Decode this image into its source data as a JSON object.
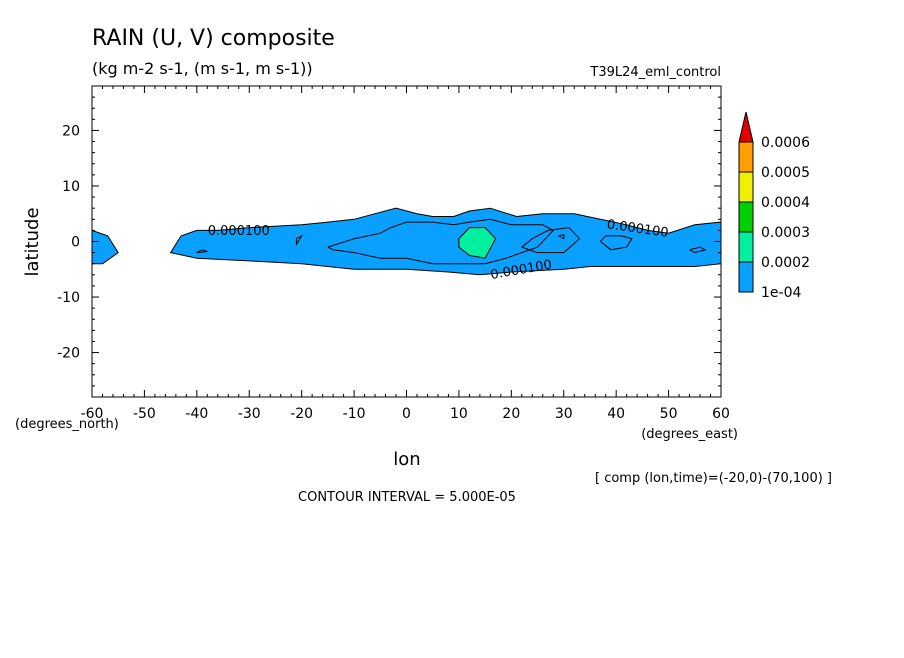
{
  "chart_data": {
    "type": "heatmap",
    "title": "RAIN (U, V) composite",
    "subtitle": "(kg m-2 s-1, (m s-1, m s-1))",
    "run_label": "T39L24_eml_control",
    "xlabel": "lon",
    "ylabel": "latitude",
    "x_unit_label": "(degrees_east)",
    "y_unit_label": "(degrees_north)",
    "xlim": [
      -60,
      60
    ],
    "ylim": [
      -28,
      28
    ],
    "x_ticks": [
      -60,
      -50,
      -40,
      -30,
      -20,
      -10,
      0,
      10,
      20,
      30,
      40,
      50,
      60
    ],
    "y_ticks": [
      -20,
      -10,
      0,
      10,
      20
    ],
    "colorbar_levels": [
      "1e-04",
      "0.0002",
      "0.0003",
      "0.0004",
      "0.0005",
      "0.0006"
    ],
    "colorbar_colors": [
      "#0aa0ff",
      "#00f0a0",
      "#00d000",
      "#f0f000",
      "#ffa000",
      "#e00000"
    ],
    "contour_labels": [
      "0.000100",
      "0.000100",
      "0.000100"
    ],
    "comp_note": "[ comp (lon,time)=(-20,0)-(70,100) ]",
    "contour_interval": "CONTOUR INTERVAL = 5.000E-05",
    "regions": [
      {
        "level": "1e-04",
        "color": "#0aa0ff",
        "polygon": [
          [
            -60,
            2
          ],
          [
            -57,
            1
          ],
          [
            -55,
            -2
          ],
          [
            -58,
            -4
          ],
          [
            -60,
            -4
          ]
        ]
      },
      {
        "level": "1e-04",
        "color": "#0aa0ff",
        "polygon": [
          [
            -45,
            -2
          ],
          [
            -43,
            1
          ],
          [
            -40,
            2
          ],
          [
            -36,
            2
          ],
          [
            -30,
            2.5
          ],
          [
            -20,
            3
          ],
          [
            -15,
            3.5
          ],
          [
            -10,
            4
          ],
          [
            -6,
            5
          ],
          [
            -2,
            6
          ],
          [
            2,
            5
          ],
          [
            5,
            4.5
          ],
          [
            9,
            4.5
          ],
          [
            12,
            5.5
          ],
          [
            16,
            6
          ],
          [
            21,
            4.5
          ],
          [
            26,
            5
          ],
          [
            32,
            5
          ],
          [
            37,
            4
          ],
          [
            42,
            3
          ],
          [
            46,
            2
          ],
          [
            50,
            1.5
          ],
          [
            55,
            3
          ],
          [
            60,
            3.5
          ],
          [
            60,
            -4
          ],
          [
            55,
            -4.5
          ],
          [
            45,
            -4.5
          ],
          [
            40,
            -4.5
          ],
          [
            35,
            -4.5
          ],
          [
            30,
            -5
          ],
          [
            20,
            -5.5
          ],
          [
            14,
            -6
          ],
          [
            8,
            -5.5
          ],
          [
            0,
            -5
          ],
          [
            -10,
            -5
          ],
          [
            -20,
            -4
          ],
          [
            -30,
            -3.5
          ],
          [
            -40,
            -3
          ]
        ]
      },
      {
        "level": "0.0002",
        "color": "#00f0a0",
        "polygon": [
          [
            10,
            0.5
          ],
          [
            12,
            2.5
          ],
          [
            15,
            2.5
          ],
          [
            17,
            0.5
          ],
          [
            15,
            -3
          ],
          [
            12,
            -2.5
          ],
          [
            10,
            -1
          ]
        ]
      }
    ],
    "contour_lines": [
      [
        [
          -15,
          -1
        ],
        [
          -10,
          0.5
        ],
        [
          -5,
          1.5
        ],
        [
          -3,
          2.5
        ],
        [
          0,
          3.5
        ],
        [
          5,
          3.5
        ],
        [
          9,
          3
        ],
        [
          12,
          3.5
        ],
        [
          16,
          4
        ],
        [
          20,
          3
        ],
        [
          26,
          3
        ],
        [
          28,
          2
        ],
        [
          25,
          -1
        ],
        [
          22,
          -2
        ],
        [
          19,
          -3
        ],
        [
          15,
          -4
        ],
        [
          10,
          -4
        ],
        [
          5,
          -4
        ],
        [
          0,
          -3
        ],
        [
          -5,
          -3
        ],
        [
          -10,
          -2
        ],
        [
          -14,
          -1.5
        ],
        [
          -15,
          -1
        ]
      ],
      [
        [
          22,
          -1
        ],
        [
          24,
          0.5
        ],
        [
          27,
          2
        ],
        [
          31,
          2.5
        ],
        [
          33,
          0.5
        ],
        [
          30,
          -2
        ],
        [
          25,
          -2
        ],
        [
          22,
          -1
        ]
      ],
      [
        [
          37,
          0
        ],
        [
          38,
          1
        ],
        [
          41,
          1
        ],
        [
          43,
          0.5
        ],
        [
          42,
          -1
        ],
        [
          39,
          -1.5
        ],
        [
          37,
          0
        ]
      ],
      [
        [
          -21,
          0.5
        ],
        [
          -20,
          1
        ],
        [
          -21,
          -0.5
        ],
        [
          -21,
          0.5
        ]
      ],
      [
        [
          -40,
          -2
        ],
        [
          -39,
          -1.5
        ],
        [
          -38,
          -1.8
        ],
        [
          -40,
          -2
        ]
      ],
      [
        [
          29,
          1
        ],
        [
          30,
          1.2
        ],
        [
          30,
          0.5
        ],
        [
          29,
          1
        ]
      ],
      [
        [
          54,
          -1.5
        ],
        [
          56,
          -1
        ],
        [
          57,
          -1.5
        ],
        [
          55,
          -2
        ],
        [
          54,
          -1.5
        ]
      ]
    ]
  }
}
